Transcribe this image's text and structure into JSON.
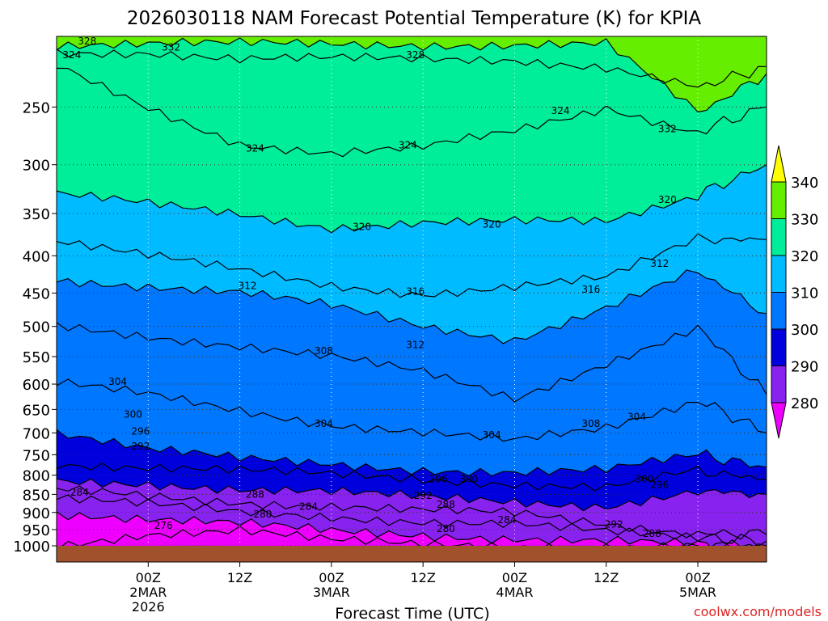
{
  "chart_data": {
    "type": "contour",
    "title": "2026030118 NAM Forecast Potential Temperature (K) for KPIA",
    "xlabel": "Forecast Time (UTC)",
    "ylabel": "",
    "credit": "coolwx.com/models",
    "y_scale": "log-pressure",
    "ylim": [
      1000,
      200
    ],
    "xlim": [
      -12,
      81
    ],
    "y_ticks": [
      250,
      300,
      350,
      400,
      450,
      500,
      550,
      600,
      650,
      700,
      750,
      800,
      850,
      900,
      950,
      1000
    ],
    "x_ticks": [
      {
        "hour": 0,
        "label": "00Z",
        "date": "2MAR",
        "year": "2026"
      },
      {
        "hour": 12,
        "label": "12Z",
        "date": "",
        "year": ""
      },
      {
        "hour": 24,
        "label": "00Z",
        "date": "3MAR",
        "year": ""
      },
      {
        "hour": 36,
        "label": "12Z",
        "date": "",
        "year": ""
      },
      {
        "hour": 48,
        "label": "00Z",
        "date": "4MAR",
        "year": ""
      },
      {
        "hour": 60,
        "label": "12Z",
        "date": "",
        "year": ""
      },
      {
        "hour": 72,
        "label": "00Z",
        "date": "5MAR",
        "year": ""
      }
    ],
    "colorbar": {
      "ticks": [
        "340",
        "330",
        "320",
        "310",
        "300",
        "290",
        "280"
      ],
      "bands": [
        {
          "min": 340,
          "max": 350,
          "color": "#ffff00"
        },
        {
          "min": 330,
          "max": 340,
          "color": "#66ee00"
        },
        {
          "min": 320,
          "max": 330,
          "color": "#00ee99"
        },
        {
          "min": 310,
          "max": 320,
          "color": "#00bbff"
        },
        {
          "min": 300,
          "max": 310,
          "color": "#0077ff"
        },
        {
          "min": 290,
          "max": 300,
          "color": "#0000dd"
        },
        {
          "min": 280,
          "max": 290,
          "color": "#8822ee"
        },
        {
          "min": 270,
          "max": 280,
          "color": "#ee00ff"
        }
      ],
      "terrain_color": "#a0522d"
    },
    "series": [
      {
        "level": 276,
        "x": [
          -12,
          0,
          12,
          24,
          36,
          48,
          60,
          72,
          81
        ],
        "p": [
          1000,
          960,
          950,
          985,
          1000,
          1000,
          1000,
          1000,
          1000
        ]
      },
      {
        "level": 280,
        "x": [
          -12,
          0,
          12,
          24,
          36,
          48,
          60,
          72,
          81
        ],
        "p": [
          900,
          920,
          935,
          955,
          965,
          975,
          985,
          1000,
          1000
        ]
      },
      {
        "level": 284,
        "x": [
          -12,
          0,
          12,
          24,
          36,
          48,
          60,
          72,
          81
        ],
        "p": [
          860,
          880,
          900,
          910,
          925,
          935,
          960,
          975,
          985
        ]
      },
      {
        "level": 288,
        "x": [
          -12,
          0,
          12,
          24,
          36,
          48,
          60,
          72,
          81
        ],
        "p": [
          840,
          855,
          870,
          880,
          895,
          905,
          935,
          960,
          965
        ]
      },
      {
        "level": 292,
        "x": [
          -12,
          0,
          12,
          24,
          36,
          48,
          60,
          72,
          81
        ],
        "p": [
          815,
          820,
          835,
          845,
          860,
          870,
          880,
          840,
          850
        ]
      },
      {
        "level": 296,
        "x": [
          -12,
          0,
          12,
          24,
          36,
          48,
          60,
          72,
          81
        ],
        "p": [
          770,
          780,
          790,
          800,
          810,
          820,
          830,
          790,
          810
        ]
      },
      {
        "level": 300,
        "x": [
          -12,
          0,
          12,
          24,
          36,
          48,
          60,
          72,
          81
        ],
        "p": [
          700,
          740,
          760,
          770,
          785,
          795,
          790,
          750,
          780
        ]
      },
      {
        "level": 304,
        "x": [
          -12,
          0,
          12,
          24,
          36,
          48,
          60,
          72,
          81
        ],
        "p": [
          600,
          620,
          650,
          680,
          700,
          720,
          690,
          630,
          700
        ]
      },
      {
        "level": 308,
        "x": [
          -12,
          0,
          12,
          24,
          36,
          48,
          60,
          72,
          81
        ],
        "p": [
          500,
          515,
          530,
          550,
          580,
          630,
          560,
          500,
          620
        ]
      },
      {
        "level": 312,
        "x": [
          -12,
          0,
          12,
          24,
          36,
          48,
          60,
          72,
          81
        ],
        "p": [
          430,
          440,
          450,
          470,
          500,
          520,
          470,
          420,
          480
        ]
      },
      {
        "level": 316,
        "x": [
          -12,
          0,
          12,
          24,
          36,
          48,
          60,
          72,
          81
        ],
        "p": [
          380,
          400,
          420,
          440,
          450,
          440,
          430,
          380,
          380
        ]
      },
      {
        "level": 320,
        "x": [
          -12,
          0,
          12,
          24,
          36,
          48,
          60,
          72,
          81
        ],
        "p": [
          330,
          340,
          350,
          365,
          360,
          360,
          360,
          330,
          300
        ]
      },
      {
        "level": 324,
        "x": [
          -12,
          0,
          12,
          24,
          36,
          48,
          60,
          72,
          81
        ],
        "p": [
          220,
          250,
          280,
          290,
          285,
          270,
          250,
          270,
          250
        ]
      },
      {
        "level": 328,
        "x": [
          -12,
          0,
          12,
          24,
          36,
          48,
          60,
          72,
          81
        ],
        "p": [
          210,
          210,
          215,
          215,
          215,
          215,
          220,
          235,
          220
        ]
      },
      {
        "level": 332,
        "x": [
          -12,
          0,
          12,
          24,
          36,
          48,
          60,
          72,
          81
        ],
        "p": [
          205,
          205,
          205,
          205,
          205,
          205,
          205,
          255,
          225
        ]
      }
    ],
    "contour_labels": [
      {
        "text": "328",
        "x": -8,
        "p": 203
      },
      {
        "text": "332",
        "x": 3,
        "p": 207
      },
      {
        "text": "324",
        "x": -10,
        "p": 212
      },
      {
        "text": "328",
        "x": 35,
        "p": 212
      },
      {
        "text": "324",
        "x": 54,
        "p": 253
      },
      {
        "text": "332",
        "x": 68,
        "p": 268
      },
      {
        "text": "324",
        "x": 14,
        "p": 285
      },
      {
        "text": "324",
        "x": 34,
        "p": 282
      },
      {
        "text": "320",
        "x": 68,
        "p": 335
      },
      {
        "text": "320",
        "x": 28,
        "p": 365
      },
      {
        "text": "320",
        "x": 45,
        "p": 362
      },
      {
        "text": "312",
        "x": 67,
        "p": 410
      },
      {
        "text": "312",
        "x": 13,
        "p": 440
      },
      {
        "text": "316",
        "x": 35,
        "p": 448
      },
      {
        "text": "316",
        "x": 58,
        "p": 445
      },
      {
        "text": "308",
        "x": 23,
        "p": 540
      },
      {
        "text": "312",
        "x": 35,
        "p": 530
      },
      {
        "text": "304",
        "x": -4,
        "p": 595
      },
      {
        "text": "300",
        "x": -2,
        "p": 660
      },
      {
        "text": "296",
        "x": -1,
        "p": 697
      },
      {
        "text": "292",
        "x": -1,
        "p": 730
      },
      {
        "text": "304",
        "x": 23,
        "p": 680
      },
      {
        "text": "304",
        "x": 45,
        "p": 705
      },
      {
        "text": "308",
        "x": 58,
        "p": 680
      },
      {
        "text": "304",
        "x": 64,
        "p": 665
      },
      {
        "text": "296",
        "x": 38,
        "p": 810
      },
      {
        "text": "300",
        "x": 42,
        "p": 810
      },
      {
        "text": "300",
        "x": 65,
        "p": 810
      },
      {
        "text": "296",
        "x": 67,
        "p": 825
      },
      {
        "text": "284",
        "x": -9,
        "p": 845
      },
      {
        "text": "288",
        "x": 14,
        "p": 850
      },
      {
        "text": "292",
        "x": 36,
        "p": 853
      },
      {
        "text": "288",
        "x": 39,
        "p": 878
      },
      {
        "text": "284",
        "x": 21,
        "p": 883
      },
      {
        "text": "280",
        "x": 15,
        "p": 905
      },
      {
        "text": "284",
        "x": 47,
        "p": 922
      },
      {
        "text": "276",
        "x": 2,
        "p": 938
      },
      {
        "text": "280",
        "x": 39,
        "p": 948
      },
      {
        "text": "292",
        "x": 61,
        "p": 935
      },
      {
        "text": "288",
        "x": 66,
        "p": 962
      }
    ]
  }
}
